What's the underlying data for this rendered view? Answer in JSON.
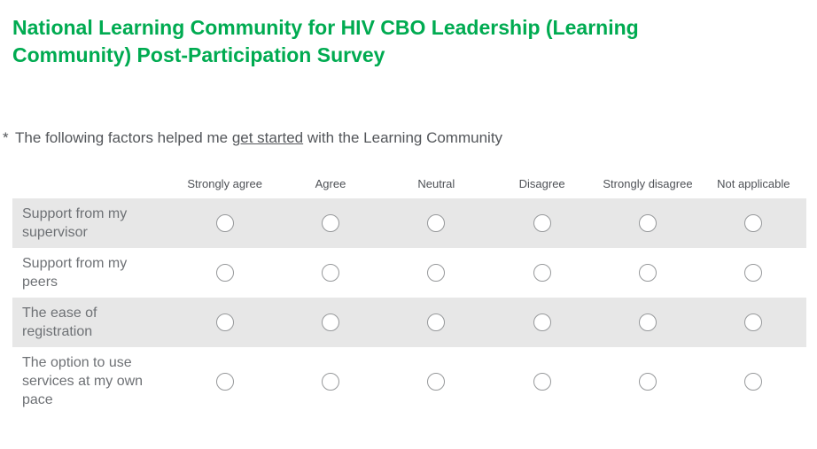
{
  "header": {
    "title": "National Learning Community for HIV CBO Leadership (Learning Community) Post-Participation Survey",
    "title_color": "#00ab51"
  },
  "question": {
    "required_marker": "*",
    "text_before": "The following factors helped me",
    "underlined_text": "get started",
    "text_after": "with the Learning Community"
  },
  "matrix": {
    "columns": [
      "Strongly agree",
      "Agree",
      "Neutral",
      "Disagree",
      "Strongly disagree",
      "Not applicable"
    ],
    "rows": [
      {
        "label": "Support from my supervisor",
        "selected": null
      },
      {
        "label": "Support from my peers",
        "selected": null
      },
      {
        "label": "The ease of registration",
        "selected": null
      },
      {
        "label": "The option to use services at my own pace",
        "selected": null
      }
    ],
    "striped_row_color": "#e7e7e7"
  }
}
